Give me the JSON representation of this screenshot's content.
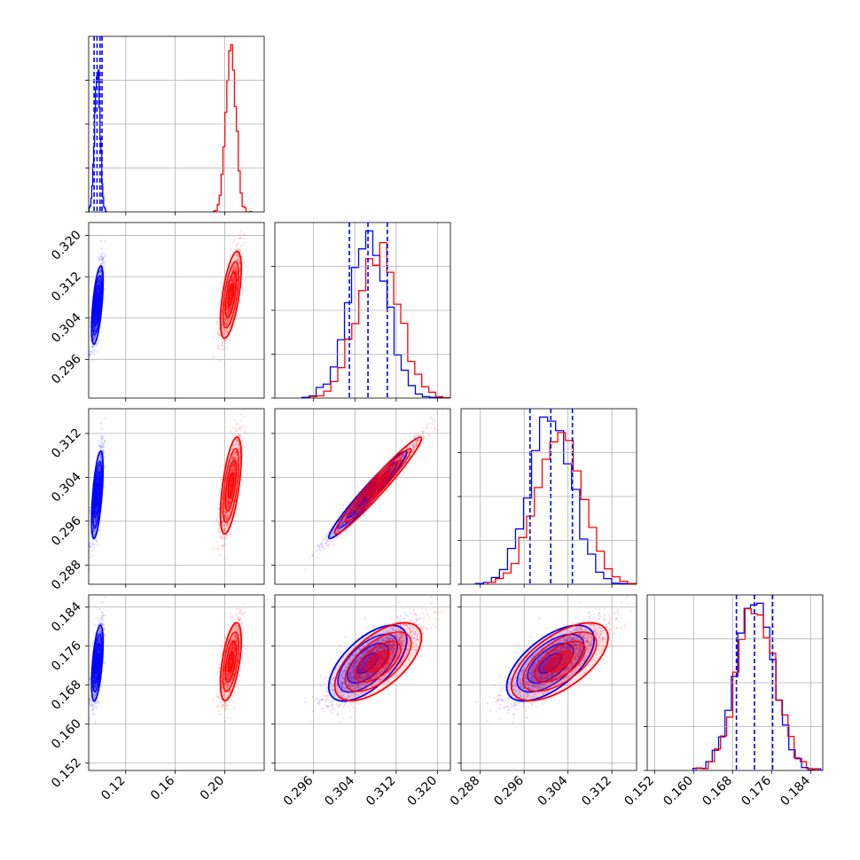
{
  "chart_data": {
    "type": "corner",
    "title": "",
    "colors": {
      "blue": "#0000ff",
      "red": "#ff0000",
      "grid": "#b0b0b0"
    },
    "series": [
      {
        "name": "",
        "color": "#0000ff",
        "mean": [
          0.097,
          0.3065,
          0.3008,
          0.1725
        ],
        "std": [
          0.0022,
          0.0036,
          0.0038,
          0.0037
        ]
      },
      {
        "name": "",
        "color": "#ff0000",
        "mean": [
          0.205,
          0.3085,
          0.3025,
          0.1728
        ],
        "std": [
          0.004,
          0.004,
          0.0042,
          0.0038
        ]
      }
    ],
    "correlations": {
      "1-0": 0.6,
      "2-0": 0.6,
      "2-1": 0.97,
      "3-0": 0.55,
      "3-1": 0.62,
      "3-2": 0.62
    },
    "quantile_lines": {
      "color": "#0000ff",
      "quantiles": [
        0.16,
        0.5,
        0.84
      ],
      "diag0_extra": [
        0.0944,
        0.0968,
        0.0992,
        0.1008
      ]
    },
    "axes": [
      {
        "range": [
          0.09,
          0.232
        ],
        "ticks": [
          0.12,
          0.16,
          0.2
        ],
        "tick_labels": [
          "0.12",
          "0.16",
          "0.20"
        ]
      },
      {
        "range": [
          0.2885,
          0.3225
        ],
        "ticks": [
          0.296,
          0.304,
          0.312,
          0.32
        ],
        "tick_labels": [
          "0.296",
          "0.304",
          "0.312",
          "0.320"
        ]
      },
      {
        "range": [
          0.2845,
          0.3165
        ],
        "ticks": [
          0.288,
          0.296,
          0.304,
          0.312
        ],
        "tick_labels": [
          "0.288",
          "0.296",
          "0.304",
          "0.312"
        ]
      },
      {
        "range": [
          0.1505,
          0.1865
        ],
        "ticks": [
          0.152,
          0.16,
          0.168,
          0.176,
          0.184
        ],
        "tick_labels": [
          "0.152",
          "0.160",
          "0.168",
          "0.176",
          "0.184"
        ]
      }
    ],
    "bins": 20,
    "samples": 3000,
    "grid": true,
    "legend": "none"
  }
}
